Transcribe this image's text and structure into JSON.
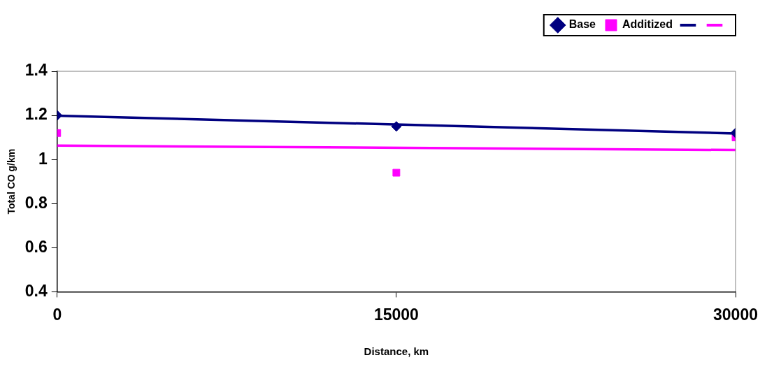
{
  "chart_data": {
    "type": "scatter",
    "xlabel": "Distance, km",
    "ylabel": "Total CO g/km",
    "xlim": [
      0,
      30000
    ],
    "xticks": [
      0,
      15000,
      30000
    ],
    "ylim": [
      0.4,
      1.4
    ],
    "yticks": [
      0.4,
      0.6,
      0.8,
      1,
      1.2,
      1.4
    ],
    "grid": false,
    "legend": "top right",
    "series": [
      {
        "name": "Base",
        "type": "scatter",
        "marker": "diamond",
        "color": "#000080",
        "x": [
          0,
          15000,
          30000
        ],
        "values": [
          1.2,
          1.15,
          1.12
        ]
      },
      {
        "name": "Additized",
        "type": "scatter",
        "marker": "square",
        "color": "#ff00ff",
        "x": [
          0,
          15000,
          30000
        ],
        "values": [
          1.12,
          0.94,
          1.1
        ]
      },
      {
        "type": "line",
        "marker": "none",
        "color": "#000080",
        "x": [
          0,
          30000
        ],
        "values": [
          1.199,
          1.118
        ]
      },
      {
        "type": "line",
        "marker": "none",
        "color": "#ff00ff",
        "x": [
          0,
          30000
        ],
        "values": [
          1.063,
          1.043
        ]
      }
    ]
  }
}
